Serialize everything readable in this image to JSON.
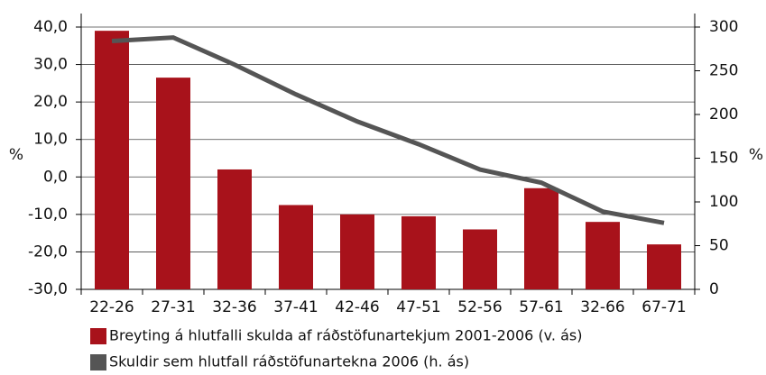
{
  "chart_data": {
    "type": "bar-line",
    "categories": [
      "22-26",
      "27-31",
      "32-36",
      "37-41",
      "42-46",
      "47-51",
      "52-56",
      "57-61",
      "32-66",
      "67-71"
    ],
    "y_label": "%",
    "y2_label": "%",
    "ylim": [
      -30,
      40
    ],
    "yticks": [
      {
        "value": -30,
        "label": "-30,0"
      },
      {
        "value": -20,
        "label": "-20,0"
      },
      {
        "value": -10,
        "label": "-10,0"
      },
      {
        "value": 0,
        "label": "0,0"
      },
      {
        "value": 10,
        "label": "10,0"
      },
      {
        "value": 20,
        "label": "20,0"
      },
      {
        "value": 30,
        "label": "30,0"
      },
      {
        "value": 40,
        "label": "40,0"
      }
    ],
    "y2lim": [
      0,
      300
    ],
    "y2ticks": [
      0,
      50,
      100,
      150,
      200,
      250,
      300
    ],
    "grid": true,
    "series": [
      {
        "name": "Breyting á hlutfalli skulda af ráðstöfunartekjum 2001-2006 (v. ás)",
        "color": "#a8121b",
        "type": "bar",
        "values": [
          39,
          26.5,
          2,
          -7.5,
          -10,
          -10.5,
          -14,
          -3,
          -12,
          -18
        ]
      },
      {
        "name": "Skuldir sem hlutfall ráðstöfunartekna 2006 (h. ás)",
        "color": "#555555",
        "type": "line",
        "axis": "y2",
        "values": [
          284,
          288,
          257,
          223,
          192,
          166,
          137,
          122,
          89,
          76
        ]
      }
    ]
  }
}
